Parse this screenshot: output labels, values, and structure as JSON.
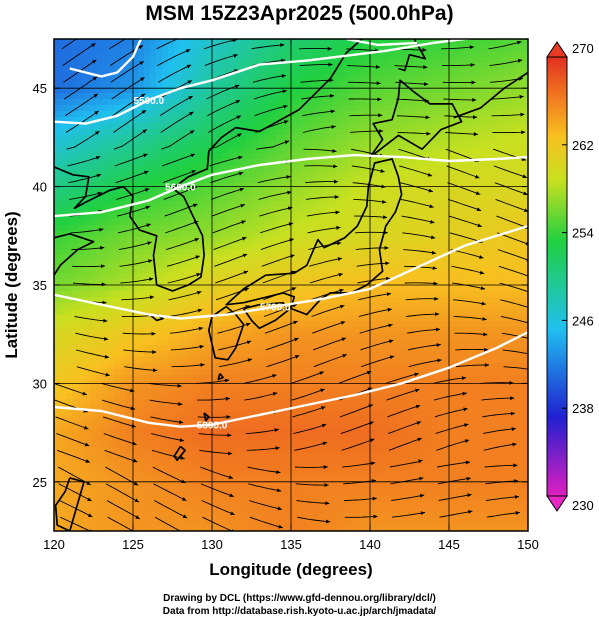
{
  "title": "MSM 15Z23Apr2025 (500.0hPa)",
  "xlabel": "Longitude (degrees)",
  "ylabel": "Latitude  (degrees)",
  "credit_line1": "Drawing by DCL (https://www.gfd-dennou.org/library/dcl/)",
  "credit_line2": "Data from http://database.rish.kyoto-u.ac.jp/arch/jmadata/",
  "chart_data": {
    "type": "heatmap",
    "xlim": [
      120,
      150
    ],
    "ylim": [
      22.5,
      47.5
    ],
    "x_ticks": [
      120,
      125,
      130,
      135,
      140,
      145,
      150
    ],
    "y_ticks": [
      25,
      30,
      35,
      40,
      45
    ],
    "colorbar": {
      "min": 230,
      "max": 270,
      "ticks": [
        230,
        238,
        246,
        254,
        262,
        270
      ],
      "colors": [
        "#e020c0",
        "#2020d0",
        "#20c0f0",
        "#20d040",
        "#c8e020",
        "#f8c020",
        "#f07020",
        "#e03020"
      ]
    },
    "temperature_grid": {
      "lons": [
        120,
        125,
        130,
        135,
        140,
        145,
        150
      ],
      "lats": [
        47.5,
        45,
        42.5,
        40,
        37.5,
        35,
        32.5,
        30,
        27.5,
        25,
        22.5
      ],
      "values": [
        [
          241,
          242,
          247,
          251,
          253,
          254,
          255
        ],
        [
          241,
          243,
          249,
          253,
          255,
          256,
          257
        ],
        [
          246,
          249,
          252,
          255,
          257,
          258,
          259
        ],
        [
          250,
          253,
          255,
          257,
          259,
          260,
          260
        ],
        [
          254,
          256,
          257,
          259,
          260,
          261,
          262
        ],
        [
          256,
          258,
          261,
          262,
          263,
          263,
          263
        ],
        [
          260,
          262,
          264,
          265,
          265,
          265,
          265
        ],
        [
          262,
          265,
          266,
          266,
          266,
          266,
          266
        ],
        [
          264,
          266,
          267,
          267,
          267,
          266,
          266
        ],
        [
          264,
          265,
          266,
          266,
          266,
          266,
          266
        ],
        [
          264,
          265,
          265,
          266,
          265,
          265,
          265
        ]
      ]
    },
    "contours": [
      {
        "label": "5700.0",
        "points": [
          [
            120,
            34.5
          ],
          [
            123,
            34.0
          ],
          [
            126,
            33.5
          ],
          [
            128,
            33.3
          ],
          [
            131,
            33.5
          ],
          [
            134,
            33.9
          ],
          [
            137,
            34.3
          ],
          [
            140,
            34.8
          ],
          [
            143,
            35.9
          ],
          [
            146,
            37.0
          ],
          [
            150,
            38.0
          ]
        ]
      },
      {
        "label": "5800.0",
        "points": [
          [
            120,
            28.8
          ],
          [
            123,
            28.6
          ],
          [
            126,
            28.0
          ],
          [
            128,
            27.8
          ],
          [
            130,
            27.9
          ],
          [
            133,
            28.4
          ],
          [
            136,
            28.9
          ],
          [
            139,
            29.4
          ],
          [
            142,
            30.0
          ],
          [
            145,
            30.8
          ],
          [
            148,
            31.8
          ],
          [
            150,
            32.6
          ]
        ]
      },
      {
        "label": "5600.0",
        "points": [
          [
            120,
            38.5
          ],
          [
            123,
            38.7
          ],
          [
            126,
            39.3
          ],
          [
            128,
            40.0
          ],
          [
            130,
            40.6
          ],
          [
            133,
            41.1
          ],
          [
            136,
            41.4
          ],
          [
            139,
            41.6
          ],
          [
            142,
            41.5
          ],
          [
            145,
            41.3
          ],
          [
            148,
            41.4
          ],
          [
            150,
            41.5
          ]
        ]
      },
      {
        "label": "5500.0",
        "points": [
          [
            120,
            43.3
          ],
          [
            122,
            43.2
          ],
          [
            124,
            43.6
          ],
          [
            126,
            44.4
          ],
          [
            128,
            45.0
          ],
          [
            130,
            45.4
          ],
          [
            133,
            46.2
          ],
          [
            136,
            46.4
          ],
          [
            138,
            46.6
          ],
          [
            141,
            46.9
          ],
          [
            144,
            47.3
          ],
          [
            147,
            47.6
          ]
        ]
      },
      {
        "label": "",
        "points": [
          [
            121,
            46.0
          ],
          [
            122,
            45.8
          ],
          [
            123,
            45.6
          ],
          [
            124,
            45.8
          ],
          [
            125,
            46.6
          ],
          [
            125.5,
            47.5
          ]
        ]
      },
      {
        "label": "",
        "points": [
          [
            138.5,
            47.5
          ],
          [
            140.5,
            47.2
          ],
          [
            143,
            47.3
          ]
        ]
      }
    ],
    "wind_flow": "westerly streamlines"
  }
}
